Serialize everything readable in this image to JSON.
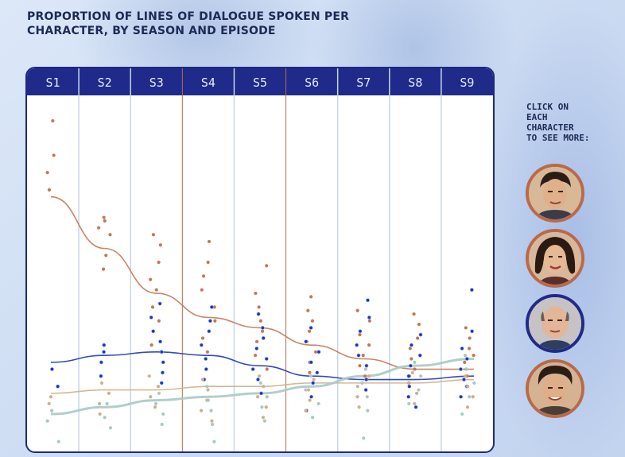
{
  "title": "PROPORTION OF LINES OF DIALOGUE SPOKEN PER CHARACTER, BY SEASON AND EPISODE",
  "side_prompt": "CLICK ON\nEACH\nCHARACTER\nTO SEE MORE:",
  "characters": [
    {
      "icon": "jerry-portrait-icon",
      "selected": false
    },
    {
      "icon": "elaine-portrait-icon",
      "selected": false
    },
    {
      "icon": "george-portrait-icon",
      "selected": true
    },
    {
      "icon": "kramer-portrait-icon",
      "selected": false
    }
  ],
  "colors": {
    "header": "#1f2a8a",
    "series_orange": "#c07a58",
    "series_blue": "#1f35b5",
    "series_tan": "#cdb18a",
    "series_teal": "#a9c9c5",
    "season_divider": "#b86a4b",
    "episode_divider": "#c7d6e6"
  },
  "chart_data": {
    "type": "scatter",
    "categories": [
      "S1",
      "S2",
      "S3",
      "S4",
      "S5",
      "S6",
      "S7",
      "S8",
      "S9"
    ],
    "highlighted_dividers_after": [
      "S3",
      "S5"
    ],
    "ylim": [
      0,
      1
    ],
    "grid": false,
    "series": [
      {
        "color": "orange",
        "trend": [
          0.72,
          0.57,
          0.44,
          0.37,
          0.34,
          0.29,
          0.25,
          0.22,
          0.22
        ],
        "points": [
          [
            0,
            0.94
          ],
          [
            0,
            0.84
          ],
          [
            0,
            0.79
          ],
          [
            0,
            0.74
          ],
          [
            1,
            0.66
          ],
          [
            1,
            0.65
          ],
          [
            1,
            0.63
          ],
          [
            1,
            0.61
          ],
          [
            1,
            0.55
          ],
          [
            1,
            0.51
          ],
          [
            2,
            0.61
          ],
          [
            2,
            0.58
          ],
          [
            2,
            0.53
          ],
          [
            2,
            0.48
          ],
          [
            2,
            0.45
          ],
          [
            2,
            0.4
          ],
          [
            2,
            0.36
          ],
          [
            2,
            0.29
          ],
          [
            3,
            0.59
          ],
          [
            3,
            0.53
          ],
          [
            3,
            0.49
          ],
          [
            3,
            0.45
          ],
          [
            3,
            0.4
          ],
          [
            3,
            0.36
          ],
          [
            3,
            0.31
          ],
          [
            3,
            0.27
          ],
          [
            4,
            0.52
          ],
          [
            4,
            0.44
          ],
          [
            4,
            0.4
          ],
          [
            4,
            0.36
          ],
          [
            4,
            0.33
          ],
          [
            4,
            0.3
          ],
          [
            4,
            0.26
          ],
          [
            4,
            0.22
          ],
          [
            5,
            0.43
          ],
          [
            5,
            0.39
          ],
          [
            5,
            0.36
          ],
          [
            5,
            0.33
          ],
          [
            5,
            0.3
          ],
          [
            5,
            0.27
          ],
          [
            5,
            0.24
          ],
          [
            5,
            0.21
          ],
          [
            6,
            0.39
          ],
          [
            6,
            0.36
          ],
          [
            6,
            0.32
          ],
          [
            6,
            0.29
          ],
          [
            6,
            0.26
          ],
          [
            6,
            0.23
          ],
          [
            6,
            0.2
          ],
          [
            7,
            0.38
          ],
          [
            7,
            0.35
          ],
          [
            7,
            0.31
          ],
          [
            7,
            0.28
          ],
          [
            7,
            0.25
          ],
          [
            7,
            0.22
          ],
          [
            7,
            0.2
          ],
          [
            7,
            0.18
          ],
          [
            8,
            0.34
          ],
          [
            8,
            0.31
          ],
          [
            8,
            0.28
          ],
          [
            8,
            0.26
          ],
          [
            8,
            0.24
          ],
          [
            8,
            0.22
          ],
          [
            8,
            0.2
          ]
        ]
      },
      {
        "color": "blue",
        "trend": [
          0.24,
          0.26,
          0.27,
          0.26,
          0.23,
          0.2,
          0.19,
          0.19,
          0.2
        ],
        "points": [
          [
            0,
            0.22
          ],
          [
            0,
            0.17
          ],
          [
            1,
            0.29
          ],
          [
            1,
            0.27
          ],
          [
            1,
            0.24
          ],
          [
            1,
            0.2
          ],
          [
            2,
            0.41
          ],
          [
            2,
            0.37
          ],
          [
            2,
            0.33
          ],
          [
            2,
            0.3
          ],
          [
            2,
            0.27
          ],
          [
            2,
            0.24
          ],
          [
            2,
            0.21
          ],
          [
            2,
            0.18
          ],
          [
            3,
            0.4
          ],
          [
            3,
            0.36
          ],
          [
            3,
            0.33
          ],
          [
            3,
            0.29
          ],
          [
            3,
            0.25
          ],
          [
            3,
            0.22
          ],
          [
            3,
            0.19
          ],
          [
            4,
            0.38
          ],
          [
            4,
            0.34
          ],
          [
            4,
            0.31
          ],
          [
            4,
            0.28
          ],
          [
            4,
            0.25
          ],
          [
            4,
            0.22
          ],
          [
            4,
            0.19
          ],
          [
            4,
            0.15
          ],
          [
            5,
            0.34
          ],
          [
            5,
            0.3
          ],
          [
            5,
            0.27
          ],
          [
            5,
            0.24
          ],
          [
            5,
            0.21
          ],
          [
            5,
            0.18
          ],
          [
            5,
            0.14
          ],
          [
            5,
            0.1
          ],
          [
            6,
            0.42
          ],
          [
            6,
            0.37
          ],
          [
            6,
            0.33
          ],
          [
            6,
            0.29
          ],
          [
            6,
            0.26
          ],
          [
            6,
            0.23
          ],
          [
            6,
            0.19
          ],
          [
            6,
            0.16
          ],
          [
            7,
            0.32
          ],
          [
            7,
            0.29
          ],
          [
            7,
            0.26
          ],
          [
            7,
            0.23
          ],
          [
            7,
            0.2
          ],
          [
            7,
            0.17
          ],
          [
            7,
            0.14
          ],
          [
            7,
            0.11
          ],
          [
            8,
            0.45
          ],
          [
            8,
            0.33
          ],
          [
            8,
            0.28
          ],
          [
            8,
            0.25
          ],
          [
            8,
            0.22
          ],
          [
            8,
            0.19
          ],
          [
            8,
            0.17
          ],
          [
            8,
            0.14
          ]
        ]
      },
      {
        "color": "tan",
        "trend": [
          0.15,
          0.16,
          0.16,
          0.17,
          0.17,
          0.18,
          0.18,
          0.18,
          0.19
        ],
        "points": [
          [
            0,
            0.14
          ],
          [
            0,
            0.12
          ],
          [
            1,
            0.18
          ],
          [
            1,
            0.15
          ],
          [
            1,
            0.12
          ],
          [
            1,
            0.09
          ],
          [
            2,
            0.2
          ],
          [
            2,
            0.17
          ],
          [
            2,
            0.14
          ],
          [
            2,
            0.11
          ],
          [
            3,
            0.19
          ],
          [
            3,
            0.16
          ],
          [
            3,
            0.13
          ],
          [
            3,
            0.1
          ],
          [
            3,
            0.07
          ],
          [
            4,
            0.2
          ],
          [
            4,
            0.17
          ],
          [
            4,
            0.14
          ],
          [
            4,
            0.11
          ],
          [
            4,
            0.08
          ],
          [
            5,
            0.19
          ],
          [
            5,
            0.16
          ],
          [
            5,
            0.13
          ],
          [
            5,
            0.1
          ],
          [
            6,
            0.2
          ],
          [
            6,
            0.17
          ],
          [
            6,
            0.14
          ],
          [
            6,
            0.11
          ],
          [
            7,
            0.21
          ],
          [
            7,
            0.18
          ],
          [
            7,
            0.15
          ],
          [
            7,
            0.12
          ],
          [
            8,
            0.2
          ],
          [
            8,
            0.17
          ],
          [
            8,
            0.14
          ],
          [
            8,
            0.11
          ]
        ]
      },
      {
        "color": "teal",
        "trend": [
          0.09,
          0.11,
          0.13,
          0.14,
          0.15,
          0.17,
          0.2,
          0.23,
          0.25
        ],
        "points": [
          [
            0,
            0.1
          ],
          [
            0,
            0.07
          ],
          [
            0,
            0.01
          ],
          [
            1,
            0.12
          ],
          [
            1,
            0.08
          ],
          [
            1,
            0.05
          ],
          [
            2,
            0.15
          ],
          [
            2,
            0.12
          ],
          [
            2,
            0.09
          ],
          [
            2,
            0.06
          ],
          [
            3,
            0.17
          ],
          [
            3,
            0.13
          ],
          [
            3,
            0.1
          ],
          [
            3,
            0.06
          ],
          [
            3,
            0.01
          ],
          [
            4,
            0.18
          ],
          [
            4,
            0.14
          ],
          [
            4,
            0.11
          ],
          [
            4,
            0.07
          ],
          [
            5,
            0.2
          ],
          [
            5,
            0.16
          ],
          [
            5,
            0.12
          ],
          [
            5,
            0.08
          ],
          [
            6,
            0.22
          ],
          [
            6,
            0.18
          ],
          [
            6,
            0.14
          ],
          [
            6,
            0.1
          ],
          [
            6,
            0.02
          ],
          [
            7,
            0.24
          ],
          [
            7,
            0.2
          ],
          [
            7,
            0.16
          ],
          [
            7,
            0.12
          ],
          [
            8,
            0.26
          ],
          [
            8,
            0.22
          ],
          [
            8,
            0.18
          ],
          [
            8,
            0.14
          ],
          [
            8,
            0.09
          ]
        ]
      }
    ]
  }
}
